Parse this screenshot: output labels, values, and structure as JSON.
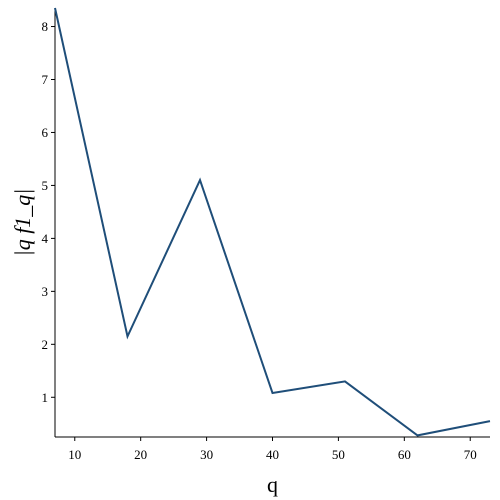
{
  "chart_data": {
    "type": "line",
    "title": "",
    "xlabel": "q",
    "ylabel": "|q f1_q|",
    "xlim": [
      7,
      73
    ],
    "ylim": [
      0.25,
      8.35
    ],
    "x_ticks": [
      10,
      20,
      30,
      40,
      50,
      60,
      70
    ],
    "y_ticks": [
      1,
      2,
      3,
      4,
      5,
      6,
      7,
      8
    ],
    "grid": false,
    "legend": "none",
    "line_color": "#1f4e79",
    "series": [
      {
        "x": [
          7,
          18,
          29,
          40,
          51,
          62,
          73
        ],
        "y": [
          8.35,
          2.15,
          5.1,
          1.08,
          1.3,
          0.28,
          0.55
        ]
      }
    ]
  }
}
